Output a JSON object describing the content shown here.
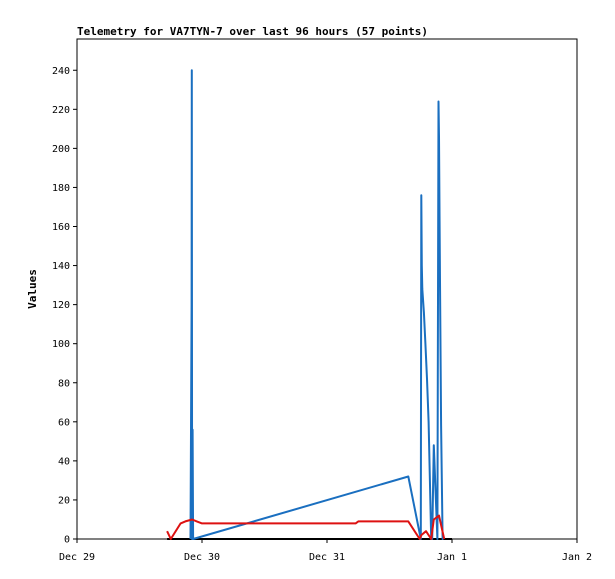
{
  "chart_data": {
    "type": "line",
    "title": "Telemetry for VA7TYN-7 over last 96 hours (57 points)",
    "xlabel": "",
    "ylabel": "Values",
    "ylim": [
      0,
      256
    ],
    "yticks": [
      0,
      20,
      40,
      60,
      80,
      100,
      120,
      140,
      160,
      180,
      200,
      220,
      240
    ],
    "xlim": [
      0,
      96
    ],
    "xticks": [
      {
        "label": "Dec 29",
        "x": 0
      },
      {
        "label": "Dec 30",
        "x": 24
      },
      {
        "label": "Dec 31",
        "x": 48
      },
      {
        "label": "Jan 1",
        "x": 72
      },
      {
        "label": "Jan 2",
        "x": 96
      }
    ],
    "grid": false,
    "legend": "none",
    "series": [
      {
        "color": "#1a6fc0",
        "x": [
          21.8,
          22.0,
          22.05,
          22.1,
          22.2,
          22.3,
          63.6,
          66.0,
          66.1,
          66.2,
          66.3,
          66.6,
          66.9,
          67.2,
          67.5,
          68.0,
          68.2,
          68.5,
          69.2,
          69.4,
          69.5,
          69.6,
          69.7,
          69.9,
          70.2,
          70.5
        ],
        "y": [
          0,
          120,
          240,
          0,
          56,
          0,
          32,
          0,
          176,
          140,
          128,
          116,
          100,
          82,
          60,
          0,
          0,
          48,
          0,
          224,
          206,
          168,
          132,
          58,
          0,
          1
        ]
      },
      {
        "color": "#dd1111",
        "x": [
          17.3,
          18.0,
          19.9,
          20.8,
          22.1,
          23.0,
          24.0,
          30.0,
          42.0,
          53.5,
          54.0,
          63.0,
          63.6,
          65.8,
          66.1,
          67.0,
          68.0,
          68.5,
          69.5,
          70.5
        ],
        "y": [
          4,
          0,
          8,
          9,
          10,
          9,
          8,
          8,
          8,
          8,
          9,
          9,
          9,
          0,
          2,
          4,
          0,
          10,
          12,
          0
        ]
      }
    ],
    "baseline": {
      "color": "#000000",
      "x": [
        17.3,
        72.0
      ],
      "y": [
        0,
        0
      ]
    }
  }
}
